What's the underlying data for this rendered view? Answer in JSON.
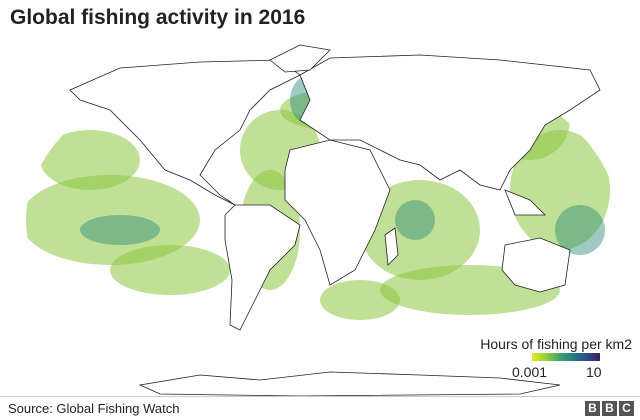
{
  "title": "Global fishing activity in 2016",
  "legend": {
    "title": "Hours of fishing per km2",
    "min": 0.001,
    "max": 10,
    "colors": [
      "#e8e81a",
      "#9ccf3c",
      "#3fa66a",
      "#277c7e",
      "#2c4f8a",
      "#3a1e5e"
    ]
  },
  "source": "Source: Global Fishing Watch",
  "logo": [
    "B",
    "B",
    "C"
  ]
}
